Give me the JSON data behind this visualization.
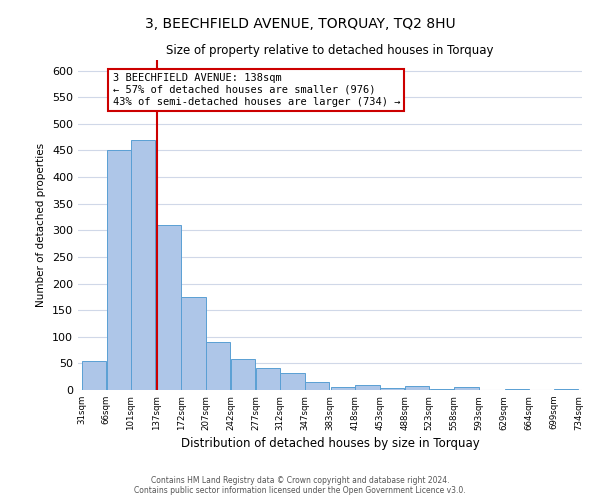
{
  "title1": "3, BEECHFIELD AVENUE, TORQUAY, TQ2 8HU",
  "title2": "Size of property relative to detached houses in Torquay",
  "xlabel": "Distribution of detached houses by size in Torquay",
  "ylabel": "Number of detached properties",
  "bar_left_edges": [
    31,
    66,
    101,
    137,
    172,
    207,
    242,
    277,
    312,
    347,
    383,
    418,
    453,
    488,
    523,
    558,
    593,
    629,
    664,
    699
  ],
  "bar_heights": [
    55,
    450,
    470,
    310,
    175,
    90,
    58,
    42,
    32,
    15,
    6,
    10,
    4,
    8,
    1,
    5,
    0,
    1,
    0,
    2
  ],
  "bin_width": 35,
  "bar_color": "#aec6e8",
  "bar_edge_color": "#5a9fd4",
  "vline_x": 138,
  "vline_color": "#cc0000",
  "annotation_line1": "3 BEECHFIELD AVENUE: 138sqm",
  "annotation_line2": "← 57% of detached houses are smaller (976)",
  "annotation_line3": "43% of semi-detached houses are larger (734) →",
  "annotation_box_color": "#ffffff",
  "annotation_box_edge": "#cc0000",
  "ylim": [
    0,
    620
  ],
  "yticks": [
    0,
    50,
    100,
    150,
    200,
    250,
    300,
    350,
    400,
    450,
    500,
    550,
    600
  ],
  "xtick_labels": [
    "31sqm",
    "66sqm",
    "101sqm",
    "137sqm",
    "172sqm",
    "207sqm",
    "242sqm",
    "277sqm",
    "312sqm",
    "347sqm",
    "383sqm",
    "418sqm",
    "453sqm",
    "488sqm",
    "523sqm",
    "558sqm",
    "593sqm",
    "629sqm",
    "664sqm",
    "699sqm",
    "734sqm"
  ],
  "footer1": "Contains HM Land Registry data © Crown copyright and database right 2024.",
  "footer2": "Contains public sector information licensed under the Open Government Licence v3.0.",
  "bg_color": "#ffffff",
  "grid_color": "#d0d8e8"
}
